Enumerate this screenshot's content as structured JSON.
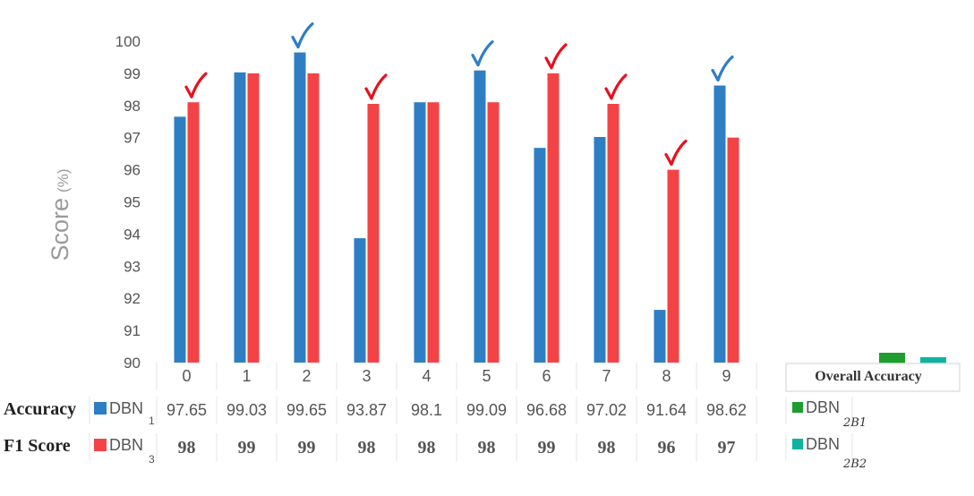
{
  "chart_data": {
    "type": "bar",
    "ylabel": "Score",
    "ylabel_unit": "(%)",
    "ylim": [
      90,
      100
    ],
    "yticks": [
      "90",
      "91",
      "92",
      "93",
      "94",
      "95",
      "96",
      "97",
      "98",
      "99",
      "100"
    ],
    "categories": [
      "0",
      "1",
      "2",
      "3",
      "4",
      "5",
      "6",
      "7",
      "8",
      "9"
    ],
    "grid": false,
    "legend_position": "table-left",
    "series": [
      {
        "name": "DBN",
        "subscript": "1",
        "row_label": "Accuracy",
        "color": "#2e7ec4",
        "values": [
          97.65,
          99.03,
          99.65,
          93.87,
          98.1,
          99.09,
          96.68,
          97.02,
          91.64,
          98.62
        ],
        "labels": [
          "97.65",
          "99.03",
          "99.65",
          "93.87",
          "98.1",
          "99.09",
          "96.68",
          "97.02",
          "91.64",
          "98.62"
        ],
        "check_color": "#2e7ec4"
      },
      {
        "name": "DBN",
        "subscript": "3",
        "row_label": "F1 Score",
        "color": "#f44346",
        "values": [
          98.1,
          99,
          99,
          98.05,
          98.1,
          98.1,
          99,
          98.05,
          96,
          97
        ],
        "labels": [
          "98",
          "99",
          "99",
          "98",
          "98",
          "98",
          "99",
          "98",
          "96",
          "97"
        ],
        "check_color": "#e8101e"
      }
    ],
    "checkmarks": [
      {
        "category": "0",
        "series": 1
      },
      {
        "category": "2",
        "series": 0
      },
      {
        "category": "3",
        "series": 1
      },
      {
        "category": "5",
        "series": 0
      },
      {
        "category": "6",
        "series": 1
      },
      {
        "category": "7",
        "series": 1
      },
      {
        "category": "8",
        "series": 1
      },
      {
        "category": "9",
        "series": 0
      }
    ]
  },
  "overall": {
    "title": "Overall Accuracy",
    "entries": [
      {
        "name": "DBN",
        "subscript": "2B1",
        "color": "#1e9e2e"
      },
      {
        "name": "DBN",
        "subscript": "2B2",
        "color": "#10b3a0"
      }
    ]
  }
}
